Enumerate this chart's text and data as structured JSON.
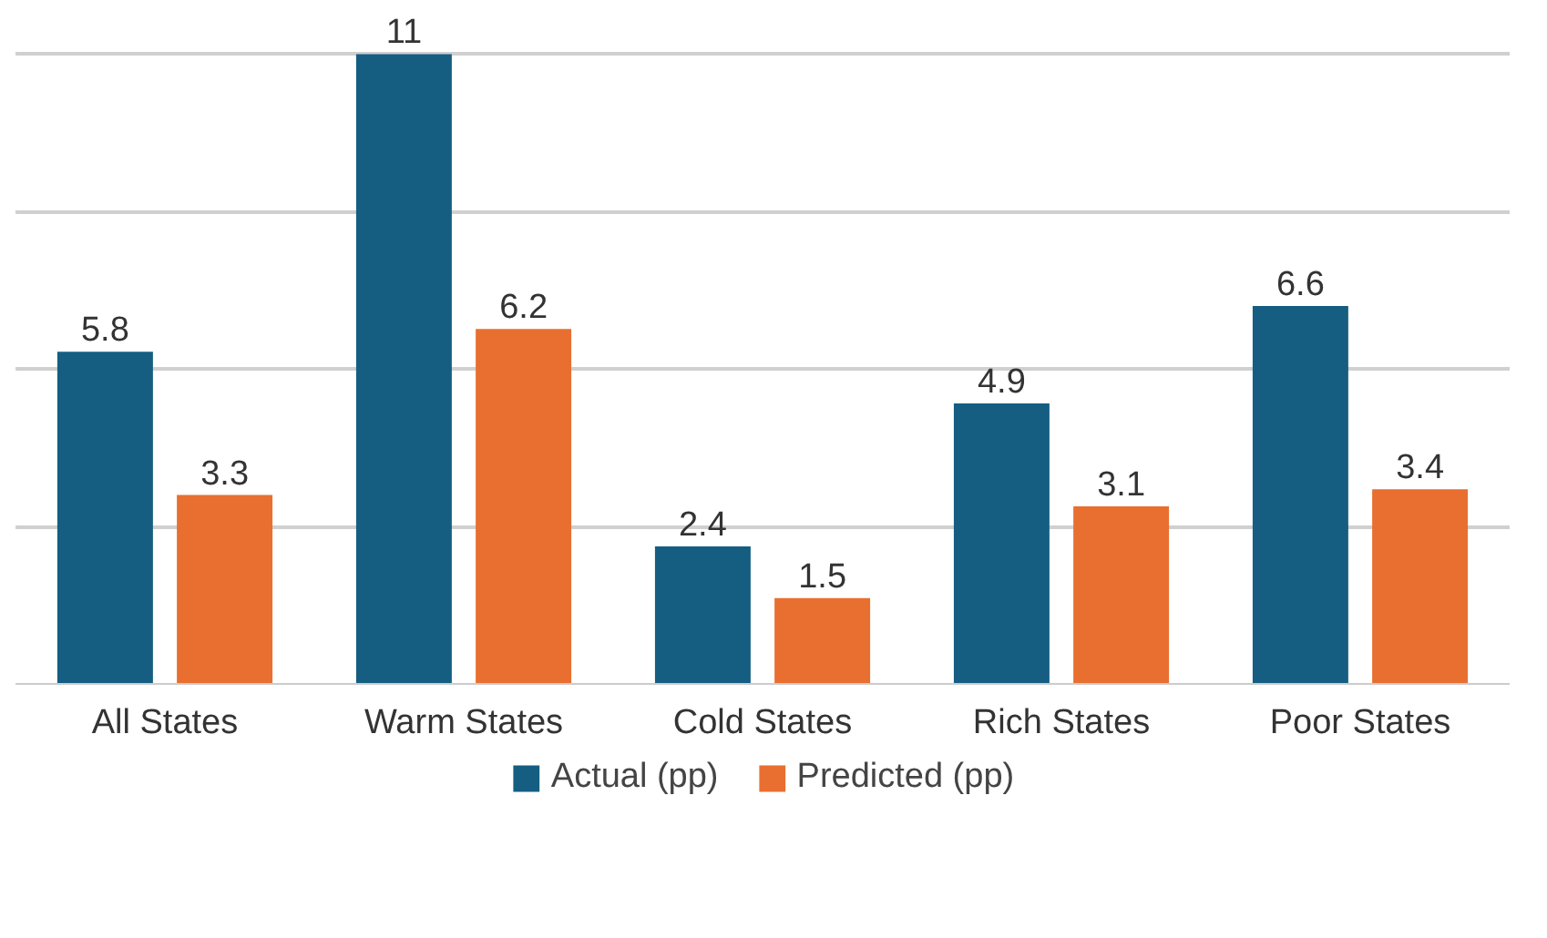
{
  "chart_data": {
    "type": "bar",
    "categories": [
      "All States",
      "Warm States",
      "Cold States",
      "Rich States",
      "Poor States"
    ],
    "series": [
      {
        "name": "Actual (pp)",
        "color": "#155e82",
        "values": [
          5.8,
          11,
          2.4,
          4.9,
          6.6
        ]
      },
      {
        "name": "Predicted (pp)",
        "color": "#e86f30",
        "values": [
          3.3,
          6.2,
          1.5,
          3.1,
          3.4
        ]
      }
    ],
    "ylim": [
      0,
      11
    ],
    "yticks": [
      {
        "value": 0,
        "label": null
      },
      {
        "value": 2.75,
        "label": null
      },
      {
        "value": 5.5,
        "label": null
      },
      {
        "value": 8.25,
        "label": null
      },
      {
        "value": 11,
        "label": null
      }
    ],
    "tick_labels": "x",
    "grid": "y",
    "legend": "bottom",
    "data_labels": true
  }
}
